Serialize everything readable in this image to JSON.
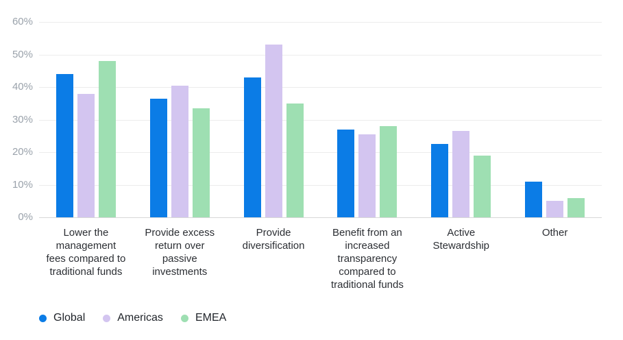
{
  "chart_data": {
    "type": "bar",
    "title": "",
    "categories": [
      {
        "lines": [
          "Lower the",
          "management",
          "fees compared to",
          "traditional funds"
        ]
      },
      {
        "lines": [
          "Provide excess",
          "return over",
          "passive",
          "investments"
        ]
      },
      {
        "lines": [
          "Provide",
          "diversification"
        ]
      },
      {
        "lines": [
          "Benefit from an",
          "increased",
          "transparency",
          "compared to",
          "traditional funds"
        ]
      },
      {
        "lines": [
          "Active",
          "Stewardship"
        ]
      },
      {
        "lines": [
          "Other"
        ]
      }
    ],
    "series": [
      {
        "name": "Global",
        "color": "#0b7ce6",
        "values": [
          44,
          36.5,
          43,
          27,
          22.5,
          11
        ]
      },
      {
        "name": "Americas",
        "color": "#d3c5f0",
        "values": [
          38,
          40.5,
          53,
          25.5,
          26.5,
          5
        ]
      },
      {
        "name": "EMEA",
        "color": "#9edfb2",
        "values": [
          48,
          33.5,
          35,
          28,
          19,
          6
        ]
      }
    ],
    "y_axis": {
      "ticks": [
        "0%",
        "10%",
        "20%",
        "30%",
        "40%",
        "50%",
        "60%"
      ],
      "min": 0,
      "max": 60,
      "step": 10,
      "unit": "%"
    },
    "xlabel": "",
    "ylabel": "",
    "ylim": [
      0,
      60
    ],
    "grid": true,
    "legend_position": "bottom-left"
  },
  "colors": {
    "background": "#ffffff",
    "gridline": "#ececec",
    "axis_line": "#d7d7d7",
    "tick_text": "#9aa2ab",
    "category_text": "#2b2e33",
    "legend_text": "#1f2329"
  }
}
